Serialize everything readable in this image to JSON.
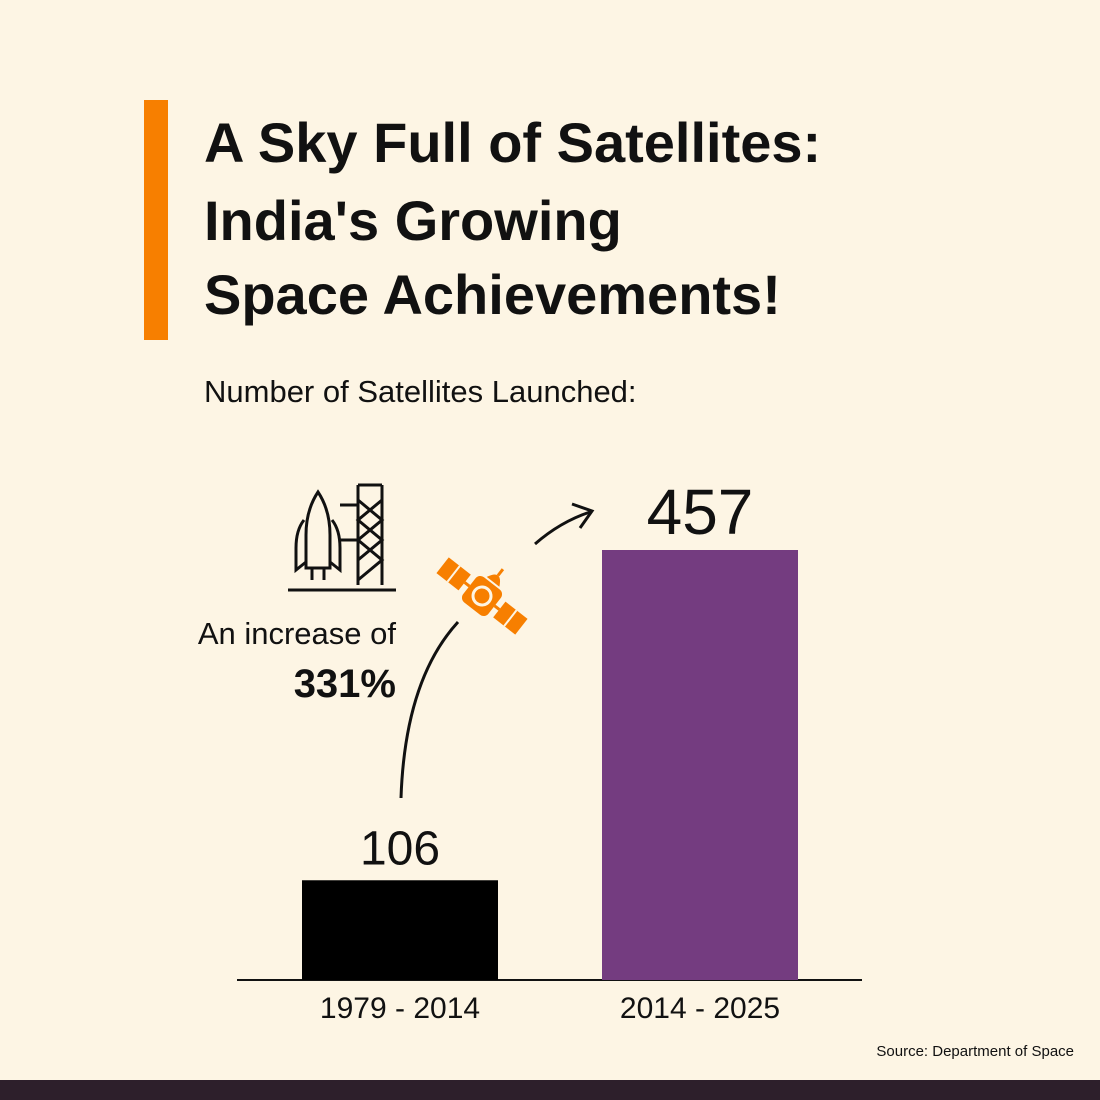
{
  "chart_data": {
    "type": "bar",
    "title": [
      "A Sky Full of Satellites:",
      "India's Growing",
      "Space Achievements!"
    ],
    "subtitle": "Number of Satellites Launched:",
    "categories": [
      "1979 - 2014",
      "2014 - 2025"
    ],
    "values": [
      106,
      457
    ],
    "colors": [
      "#000000",
      "#743c80"
    ],
    "annotation": {
      "text": "An increase of",
      "value_label": "331%"
    },
    "source": "Source: Department of Space"
  }
}
